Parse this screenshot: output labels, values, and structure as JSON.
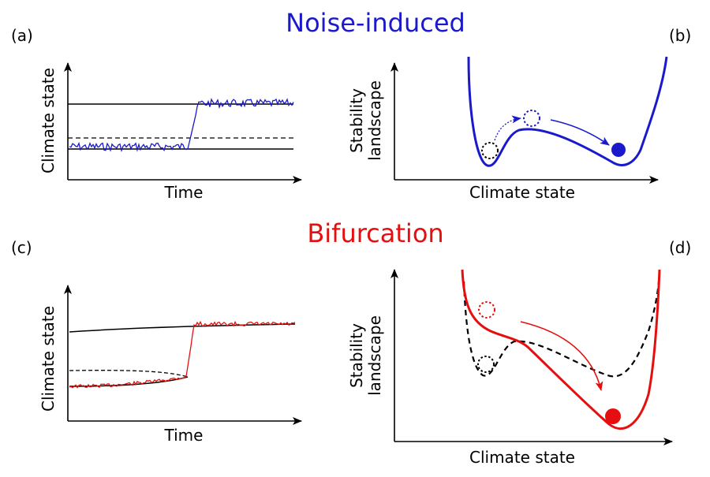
{
  "colors": {
    "noise": "#1a1acc",
    "bifurcation": "#e60f0f",
    "ink": "#000000"
  },
  "titles": {
    "top": "Noise-induced",
    "bottom": "Bifurcation"
  },
  "panels": {
    "a": {
      "label": "(a)",
      "xlabel": "Time",
      "ylabel": "Climate state"
    },
    "b": {
      "label": "(b)",
      "xlabel": "Climate state",
      "ylabel_line1": "Stability",
      "ylabel_line2": "landscape"
    },
    "c": {
      "label": "(c)",
      "xlabel": "Time",
      "ylabel": "Climate state"
    },
    "d": {
      "label": "(d)",
      "xlabel": "Climate state",
      "ylabel_line1": "Stability",
      "ylabel_line2": "landscape"
    }
  }
}
